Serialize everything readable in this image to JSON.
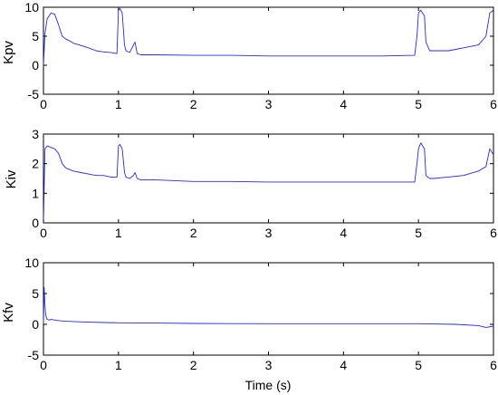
{
  "colors": {
    "line": "#2b2bd9",
    "axis": "#000000",
    "background": "#ffffff"
  },
  "chart_data": [
    {
      "type": "line",
      "ylabel": "Kpv",
      "xlabel": "",
      "xlim": [
        0,
        6
      ],
      "ylim": [
        -5,
        10
      ],
      "xticks": [
        0,
        1,
        2,
        3,
        4,
        5,
        6
      ],
      "yticks": [
        -5,
        0,
        5,
        10
      ],
      "xtick_labels": [
        "0",
        "1",
        "2",
        "3",
        "4",
        "5",
        "6"
      ],
      "ytick_labels": [
        "-5",
        "0",
        "5",
        "10"
      ],
      "series": [
        {
          "x": [
            0,
            0.02,
            0.05,
            0.1,
            0.15,
            0.2,
            0.25,
            0.3,
            0.35,
            0.4,
            0.5,
            0.6,
            0.7,
            0.8,
            0.9,
            0.98,
            1.0,
            1.02,
            1.05,
            1.08,
            1.1,
            1.15,
            1.2,
            1.22,
            1.25,
            1.3,
            1.5,
            2.0,
            2.5,
            3.0,
            3.5,
            4.0,
            4.5,
            4.95,
            4.98,
            5.0,
            5.03,
            5.08,
            5.1,
            5.15,
            5.2,
            5.4,
            5.6,
            5.8,
            5.9,
            5.95,
            6.0
          ],
          "y": [
            0,
            5.5,
            8.0,
            9.0,
            8.8,
            7.0,
            5.0,
            4.5,
            4.2,
            3.8,
            3.4,
            3.0,
            2.5,
            2.3,
            2.2,
            2.0,
            9.5,
            9.8,
            9.0,
            3.5,
            2.5,
            2.2,
            3.5,
            4.0,
            2.0,
            1.8,
            1.8,
            1.7,
            1.7,
            1.6,
            1.6,
            1.6,
            1.6,
            1.7,
            5.0,
            9.0,
            9.5,
            8.5,
            4.0,
            2.5,
            2.5,
            2.5,
            3.0,
            3.5,
            5.0,
            9.0,
            9.5
          ]
        }
      ]
    },
    {
      "type": "line",
      "ylabel": "Kiv",
      "xlabel": "",
      "xlim": [
        0,
        6
      ],
      "ylim": [
        0,
        3
      ],
      "xticks": [
        0,
        1,
        2,
        3,
        4,
        5,
        6
      ],
      "yticks": [
        0,
        1,
        2,
        3
      ],
      "xtick_labels": [
        "0",
        "1",
        "2",
        "3",
        "4",
        "5",
        "6"
      ],
      "ytick_labels": [
        "0",
        "1",
        "2",
        "3"
      ],
      "series": [
        {
          "x": [
            0,
            0.02,
            0.05,
            0.1,
            0.15,
            0.2,
            0.25,
            0.3,
            0.35,
            0.4,
            0.5,
            0.6,
            0.7,
            0.8,
            0.9,
            0.98,
            1.0,
            1.02,
            1.05,
            1.08,
            1.1,
            1.15,
            1.2,
            1.22,
            1.25,
            1.3,
            1.5,
            2.0,
            2.5,
            3.0,
            3.5,
            4.0,
            4.5,
            4.95,
            4.98,
            5.0,
            5.03,
            5.08,
            5.1,
            5.15,
            5.2,
            5.4,
            5.6,
            5.8,
            5.9,
            5.95,
            6.0
          ],
          "y": [
            0,
            2.5,
            2.6,
            2.55,
            2.5,
            2.35,
            2.0,
            1.85,
            1.8,
            1.75,
            1.7,
            1.65,
            1.6,
            1.6,
            1.55,
            1.55,
            2.6,
            2.65,
            2.5,
            1.7,
            1.55,
            1.5,
            1.6,
            1.7,
            1.5,
            1.45,
            1.45,
            1.4,
            1.4,
            1.38,
            1.38,
            1.38,
            1.38,
            1.38,
            2.0,
            2.5,
            2.7,
            2.5,
            1.6,
            1.5,
            1.5,
            1.55,
            1.6,
            1.75,
            1.9,
            2.5,
            2.3
          ]
        }
      ]
    },
    {
      "type": "line",
      "ylabel": "Kfv",
      "xlabel": "Time (s)",
      "xlim": [
        0,
        6
      ],
      "ylim": [
        -5,
        10
      ],
      "xticks": [
        0,
        1,
        2,
        3,
        4,
        5,
        6
      ],
      "yticks": [
        -5,
        0,
        5,
        10
      ],
      "xtick_labels": [
        "0",
        "1",
        "2",
        "3",
        "4",
        "5",
        "6"
      ],
      "ytick_labels": [
        "-5",
        "0",
        "5",
        "10"
      ],
      "series": [
        {
          "x": [
            0,
            0.01,
            0.02,
            0.03,
            0.05,
            0.08,
            0.1,
            0.15,
            0.2,
            0.3,
            0.5,
            0.8,
            1.0,
            1.5,
            2.0,
            3.0,
            4.0,
            5.0,
            5.5,
            5.8,
            5.9,
            6.0
          ],
          "y": [
            0,
            6.0,
            3.0,
            1.5,
            0.8,
            0.7,
            0.8,
            0.7,
            0.6,
            0.5,
            0.4,
            0.3,
            0.25,
            0.2,
            0.15,
            0.1,
            0.1,
            0.1,
            0.0,
            -0.2,
            -0.5,
            -0.3
          ]
        }
      ]
    }
  ]
}
